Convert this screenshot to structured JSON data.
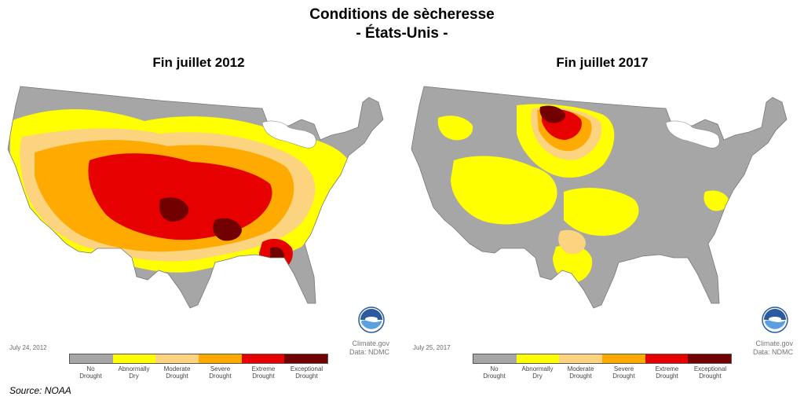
{
  "title": {
    "line1": "Conditions de sècheresse",
    "line2": "- États-Unis -"
  },
  "maps": [
    {
      "title": "Fin juillet 2012",
      "date": "July 24, 2012"
    },
    {
      "title": "Fin juillet 2017",
      "date": "July 25, 2017"
    }
  ],
  "credit": {
    "line1": "Climate.gov",
    "line2": "Data: NDMC"
  },
  "logo": "noaa-logo",
  "legend": [
    {
      "line1": "No",
      "line2": "Drought",
      "color": "#a6a6a6"
    },
    {
      "line1": "Abnormally",
      "line2": "Dry",
      "color": "#ffff00"
    },
    {
      "line1": "Moderate",
      "line2": "Drought",
      "color": "#fcd37f"
    },
    {
      "line1": "Severe",
      "line2": "Drought",
      "color": "#ffaa00"
    },
    {
      "line1": "Extreme",
      "line2": "Drought",
      "color": "#e60000"
    },
    {
      "line1": "Exceptional",
      "line2": "Drought",
      "color": "#730000"
    }
  ],
  "source": "Source: NOAA",
  "colors": {
    "background": "#ffffff",
    "map_border": "#888888",
    "lakes": "#ffffff"
  }
}
